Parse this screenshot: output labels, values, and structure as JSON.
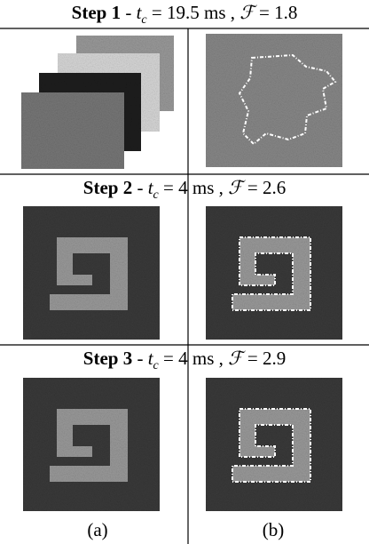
{
  "steps": [
    {
      "label": "Step 1",
      "dash": "-",
      "t_symbol": "t",
      "t_sub": "c",
      "t_value": "= 19.5 ms",
      "comma": ",",
      "f_symbol": "ℱ",
      "f_value": "= 1.8"
    },
    {
      "label": "Step 2",
      "dash": "-",
      "t_symbol": "t",
      "t_sub": "c",
      "t_value": "= 4 ms",
      "comma": ",",
      "f_symbol": "ℱ",
      "f_value": "= 2.6"
    },
    {
      "label": "Step 3",
      "dash": "-",
      "t_symbol": "t",
      "t_sub": "c",
      "t_value": "= 4 ms",
      "comma": ",",
      "f_symbol": "ℱ",
      "f_value": "= 2.9"
    }
  ],
  "columns": [
    "(a)",
    "(b)"
  ]
}
